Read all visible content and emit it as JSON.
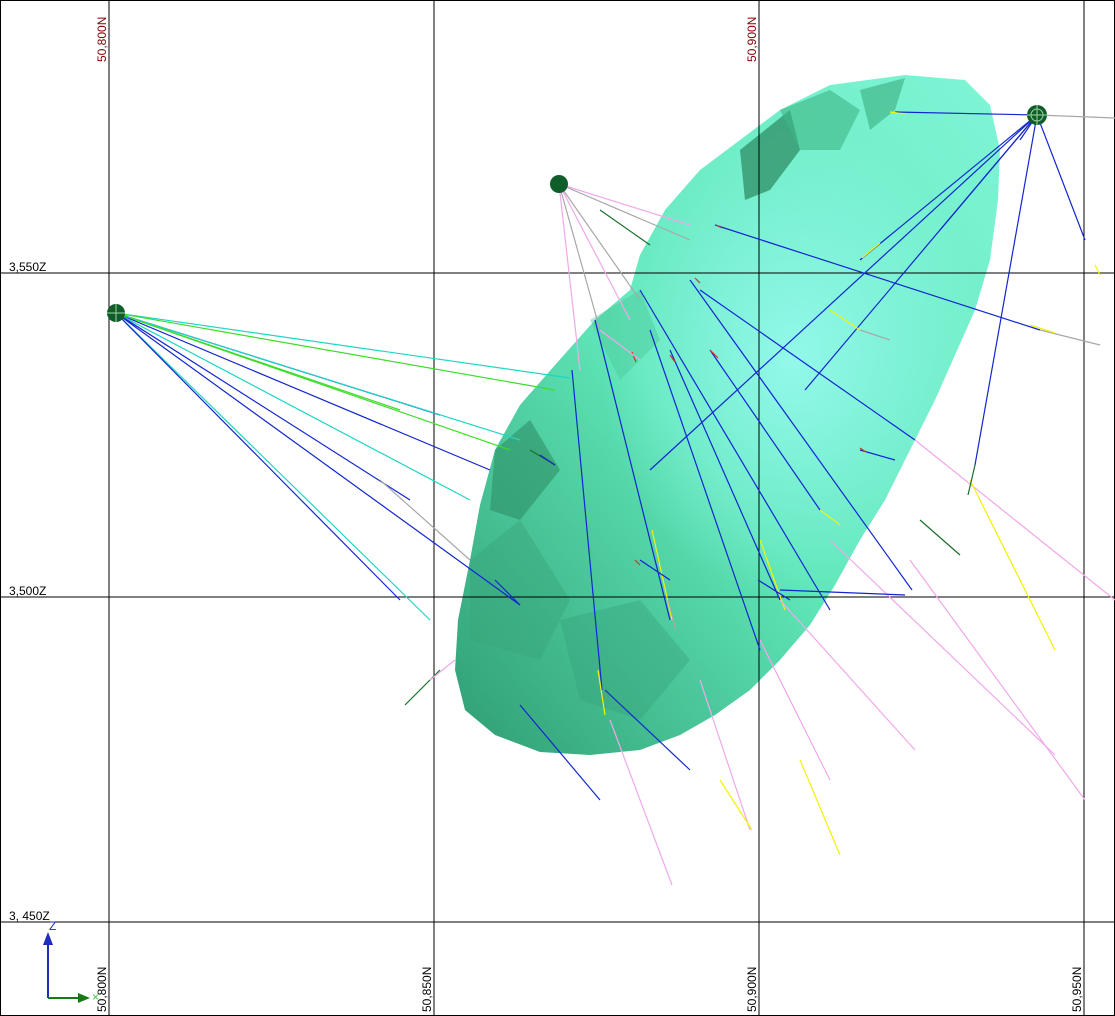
{
  "grid": {
    "northing_labels_top": [
      "50,800N",
      "50,900N"
    ],
    "northing_labels_bottom": [
      "50,800N",
      "50,850N",
      "50,900N",
      "50,950N"
    ],
    "elevation_labels": [
      "3,550Z",
      "3,500Z",
      "3, 450Z"
    ],
    "colors": {
      "grid_line": "#000000",
      "top_label": "#800000",
      "bottom_label": "#000000",
      "elevation_label": "#000000"
    }
  },
  "axes_triad": {
    "z_label": "Z",
    "colors": {
      "z": "#1f2dbd",
      "y": "#157a15",
      "x": "#3fbf3f"
    }
  },
  "orebody": {
    "fill_light": "#7ff5d6",
    "fill_mid": "#5fe6b8",
    "fill_dark": "#2f9d72"
  },
  "drillholes": {
    "collar_color": "#0f5e2a",
    "trace_colors": {
      "blue": "#1226d0",
      "cyan": "#1fd6c4",
      "green": "#3ddc2a",
      "grey": "#a8a8a8",
      "pink": "#f0a8ea",
      "yellow": "#f2f20c",
      "red": "#d8321e",
      "dark_green": "#1a6e2a"
    }
  }
}
